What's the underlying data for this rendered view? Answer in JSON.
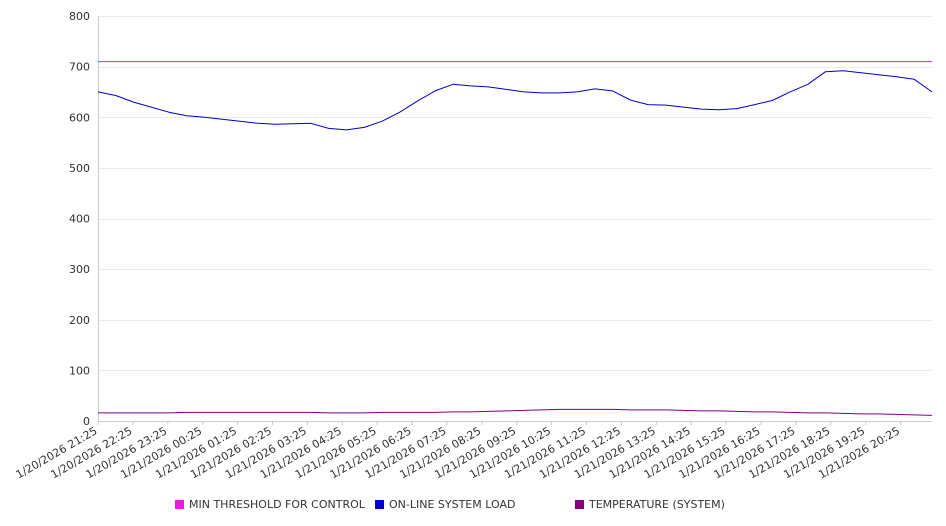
{
  "chart_data": {
    "type": "line",
    "title": "",
    "xlabel": "",
    "ylabel": "",
    "ylim": [
      0,
      800
    ],
    "yticks": [
      0,
      100,
      200,
      300,
      400,
      500,
      600,
      700,
      800
    ],
    "grid": true,
    "legend_position": "bottom",
    "x_tick_labels": [
      "1/20/2026 21:25",
      "1/20/2026 22:25",
      "1/20/2026 23:25",
      "1/21/2026 00:25",
      "1/21/2026 01:25",
      "1/21/2026 02:25",
      "1/21/2026 03:25",
      "1/21/2026 04:25",
      "1/21/2026 05:25",
      "1/21/2026 06:25",
      "1/21/2026 07:25",
      "1/21/2026 08:25",
      "1/21/2026 09:25",
      "1/21/2026 10:25",
      "1/21/2026 11:25",
      "1/21/2026 12:25",
      "1/21/2026 13:25",
      "1/21/2026 14:25",
      "1/21/2026 15:25",
      "1/21/2026 16:25",
      "1/21/2026 17:25",
      "1/21/2026 18:25",
      "1/21/2026 19:25",
      "1/21/2026 20:25"
    ],
    "x": [
      "1/20/2026 21:25",
      "1/20/2026 21:55",
      "1/20/2026 22:25",
      "1/20/2026 22:55",
      "1/20/2026 23:25",
      "1/20/2026 23:55",
      "1/21/2026 00:25",
      "1/21/2026 00:55",
      "1/21/2026 01:25",
      "1/21/2026 01:55",
      "1/21/2026 02:25",
      "1/21/2026 02:55",
      "1/21/2026 03:25",
      "1/21/2026 03:55",
      "1/21/2026 04:25",
      "1/21/2026 04:55",
      "1/21/2026 05:25",
      "1/21/2026 05:55",
      "1/21/2026 06:25",
      "1/21/2026 06:55",
      "1/21/2026 07:25",
      "1/21/2026 07:55",
      "1/21/2026 08:25",
      "1/21/2026 08:55",
      "1/21/2026 09:25",
      "1/21/2026 09:55",
      "1/21/2026 10:25",
      "1/21/2026 10:55",
      "1/21/2026 11:25",
      "1/21/2026 11:55",
      "1/21/2026 12:25",
      "1/21/2026 12:55",
      "1/21/2026 13:25",
      "1/21/2026 13:55",
      "1/21/2026 14:25",
      "1/21/2026 14:55",
      "1/21/2026 15:25",
      "1/21/2026 15:55",
      "1/21/2026 16:25",
      "1/21/2026 16:55",
      "1/21/2026 17:25",
      "1/21/2026 17:55",
      "1/21/2026 18:25",
      "1/21/2026 18:55",
      "1/21/2026 19:25",
      "1/21/2026 19:55",
      "1/21/2026 20:25",
      "1/21/2026 20:55"
    ],
    "series": [
      {
        "name": "MIN THRESHOLD FOR CONTROL",
        "color": "#e020e0",
        "values": [
          710,
          710,
          710,
          710,
          710,
          710,
          710,
          710,
          710,
          710,
          710,
          710,
          710,
          710,
          710,
          710,
          710,
          710,
          710,
          710,
          710,
          710,
          710,
          710,
          710,
          710,
          710,
          710,
          710,
          710,
          710,
          710,
          710,
          710,
          710,
          710,
          710,
          710,
          710,
          710,
          710,
          710,
          710,
          710,
          710,
          710,
          710,
          710
        ]
      },
      {
        "name": "ON-LINE SYSTEM LOAD",
        "color": "#0000cc",
        "values": [
          650,
          643,
          630,
          620,
          610,
          603,
          600,
          596,
          592,
          588,
          586,
          587,
          588,
          578,
          575,
          580,
          592,
          610,
          632,
          652,
          665,
          662,
          660,
          655,
          650,
          648,
          648,
          650,
          656,
          652,
          634,
          625,
          624,
          620,
          616,
          615,
          617,
          625,
          633,
          650,
          665,
          690,
          692,
          688,
          684,
          680,
          675,
          650
        ]
      },
      {
        "name": "TEMPERATURE (SYSTEM)",
        "color": "#800080",
        "values": [
          16,
          16,
          16,
          16,
          16,
          17,
          17,
          17,
          17,
          17,
          17,
          17,
          17,
          16,
          16,
          16,
          17,
          17,
          17,
          17,
          18,
          18,
          19,
          20,
          21,
          22,
          23,
          23,
          23,
          23,
          22,
          22,
          22,
          21,
          20,
          20,
          19,
          18,
          18,
          17,
          16,
          16,
          15,
          14,
          14,
          13,
          12,
          11
        ]
      }
    ]
  }
}
